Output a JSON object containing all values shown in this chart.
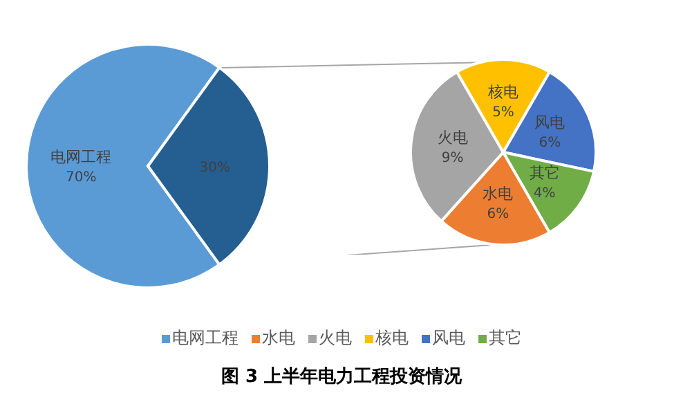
{
  "chart_data": [
    {
      "type": "pie",
      "title": "图 3  上半年电力工程投资情况",
      "categories": [
        "电网工程",
        null
      ],
      "values": [
        70,
        30
      ],
      "value_labels": [
        "70%",
        "30%"
      ],
      "colors": [
        "#5b9bd5",
        "#255e91"
      ],
      "legend": "bottom"
    },
    {
      "type": "pie",
      "categories": [
        "水电",
        "火电",
        "核电",
        "风电",
        "其它"
      ],
      "values": [
        6,
        9,
        5,
        6,
        4
      ],
      "value_labels": [
        "6%",
        "9%",
        "5%",
        "6%",
        "4%"
      ],
      "colors": [
        "#ed7d31",
        "#a5a5a5",
        "#ffc000",
        "#4472c4",
        "#70ad47"
      ],
      "legend": "bottom"
    }
  ]
}
